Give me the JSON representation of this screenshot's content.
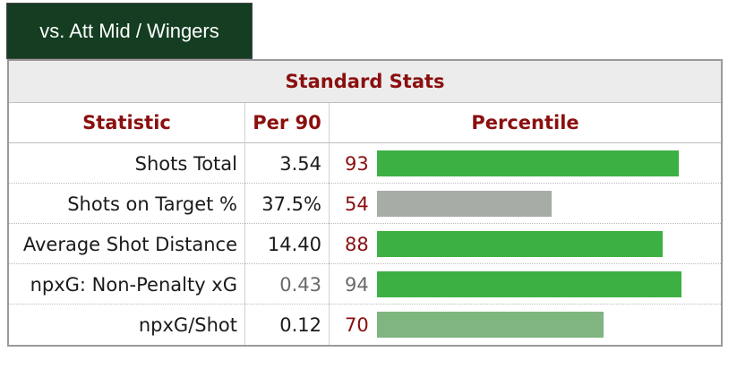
{
  "tab": {
    "label": "vs. Att Mid / Wingers"
  },
  "table": {
    "section_title": "Standard Stats",
    "columns": [
      "Statistic",
      "Per 90",
      "Percentile"
    ],
    "rows": [
      {
        "statistic": "Shots Total",
        "per90": "3.54",
        "per90_color": "#1a1a1a",
        "percentile": 93,
        "percentile_label": "93",
        "percentile_color": "#8b0f0f",
        "bar_color": "#3cb043"
      },
      {
        "statistic": "Shots on Target %",
        "per90": "37.5%",
        "per90_color": "#1a1a1a",
        "percentile": 54,
        "percentile_label": "54",
        "percentile_color": "#8b0f0f",
        "bar_color": "#a6ada6"
      },
      {
        "statistic": "Average Shot Distance",
        "per90": "14.40",
        "per90_color": "#1a1a1a",
        "percentile": 88,
        "percentile_label": "88",
        "percentile_color": "#8b0f0f",
        "bar_color": "#3cb043"
      },
      {
        "statistic": "npxG: Non-Penalty xG",
        "per90": "0.43",
        "per90_color": "#6a6a6a",
        "percentile": 94,
        "percentile_label": "94",
        "percentile_color": "#6a6a6a",
        "bar_color": "#3cb043"
      },
      {
        "statistic": "npxG/Shot",
        "per90": "0.12",
        "per90_color": "#1a1a1a",
        "percentile": 70,
        "percentile_label": "70",
        "percentile_color": "#8b0f0f",
        "bar_color": "#7fb57f"
      }
    ]
  },
  "colors": {
    "tab_bg": "#143d22",
    "header_text": "#8b0f0f",
    "header_bg": "#ececec"
  }
}
